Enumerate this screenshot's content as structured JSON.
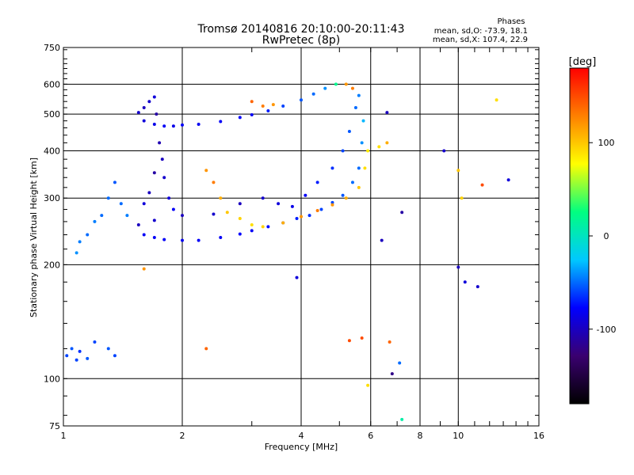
{
  "chart_data": {
    "type": "scatter",
    "title": "Tromsø 20140816 20:10:00-20:11:43",
    "subtitle": "RwPretec (8p)",
    "xlabel": "Frequency [MHz]",
    "ylabel": "Stationary phase Virtual Height [km]",
    "x_scale": "log",
    "y_scale": "log",
    "xlim": [
      1,
      16
    ],
    "ylim": [
      75,
      750
    ],
    "x_ticks": [
      1,
      2,
      4,
      6,
      8,
      10,
      16
    ],
    "y_ticks": [
      75,
      100,
      200,
      300,
      400,
      500,
      600,
      750
    ],
    "grid": true,
    "annotation": {
      "title": "Phases",
      "line1": "mean, sd,O: -73.9, 18.1",
      "line2": "mean, sd,X: 107.4, 22.9"
    },
    "colorbar": {
      "label": "[deg]",
      "range": [
        -180,
        180
      ],
      "ticks": [
        100,
        0,
        -100
      ],
      "colors": [
        "#000000",
        "#3a0070",
        "#0000ff",
        "#00c8ff",
        "#00ff80",
        "#ffff00",
        "#ff8000",
        "#ff0000"
      ]
    },
    "series": [
      {
        "points": [
          [
            1.55,
            505,
            -95
          ],
          [
            1.6,
            480,
            -90
          ],
          [
            1.7,
            470,
            -85
          ],
          [
            1.8,
            465,
            -80
          ],
          [
            1.9,
            465,
            -85
          ],
          [
            2.0,
            468,
            -80
          ],
          [
            2.2,
            470,
            -82
          ],
          [
            2.5,
            478,
            -80
          ],
          [
            2.8,
            490,
            -78
          ],
          [
            3.0,
            498,
            -80
          ],
          [
            3.3,
            510,
            -70
          ],
          [
            3.6,
            525,
            -60
          ],
          [
            4.0,
            545,
            -55
          ],
          [
            4.3,
            565,
            -50
          ],
          [
            4.6,
            585,
            -40
          ],
          [
            4.9,
            600,
            20
          ],
          [
            5.2,
            600,
            120
          ],
          [
            5.4,
            585,
            130
          ],
          [
            1.6,
            520,
            -100
          ],
          [
            1.65,
            540,
            -95
          ],
          [
            1.7,
            555,
            -90
          ],
          [
            1.72,
            500,
            -110
          ],
          [
            1.75,
            420,
            -105
          ],
          [
            1.78,
            380,
            -100
          ],
          [
            1.8,
            340,
            -95
          ],
          [
            1.85,
            300,
            -90
          ],
          [
            1.9,
            280,
            -80
          ],
          [
            1.7,
            350,
            -110
          ],
          [
            1.65,
            310,
            -100
          ],
          [
            1.6,
            290,
            -90
          ],
          [
            1.6,
            240,
            -80
          ],
          [
            1.7,
            236,
            -80
          ],
          [
            1.8,
            233,
            -80
          ],
          [
            2.0,
            232,
            -82
          ],
          [
            2.2,
            232,
            -80
          ],
          [
            2.5,
            236,
            -80
          ],
          [
            2.8,
            241,
            -78
          ],
          [
            3.0,
            246,
            -80
          ],
          [
            3.3,
            252,
            -75
          ],
          [
            3.6,
            258,
            -70
          ],
          [
            3.9,
            265,
            -70
          ],
          [
            4.2,
            270,
            -65
          ],
          [
            4.5,
            280,
            -60
          ],
          [
            4.8,
            292,
            -60
          ],
          [
            5.1,
            305,
            -55
          ],
          [
            5.4,
            330,
            -50
          ],
          [
            5.6,
            360,
            -50
          ],
          [
            5.7,
            420,
            -40
          ],
          [
            5.75,
            480,
            -30
          ],
          [
            1.55,
            255,
            -100
          ],
          [
            1.7,
            262,
            -95
          ],
          [
            2.0,
            270,
            -100
          ],
          [
            2.4,
            272,
            -95
          ],
          [
            2.8,
            290,
            -100
          ],
          [
            3.2,
            300,
            -95
          ],
          [
            3.5,
            290,
            -90
          ],
          [
            3.8,
            285,
            -85
          ],
          [
            4.1,
            305,
            -80
          ],
          [
            4.4,
            330,
            -70
          ],
          [
            4.8,
            360,
            -65
          ],
          [
            5.1,
            400,
            -60
          ],
          [
            5.3,
            450,
            -55
          ],
          [
            5.5,
            520,
            -50
          ],
          [
            5.6,
            560,
            -45
          ],
          [
            1.02,
            115,
            -60
          ],
          [
            1.05,
            120,
            -55
          ],
          [
            1.08,
            112,
            -60
          ],
          [
            1.1,
            118,
            -65
          ],
          [
            1.15,
            113,
            -55
          ],
          [
            1.2,
            125,
            -60
          ],
          [
            1.3,
            120,
            -55
          ],
          [
            1.35,
            115,
            -60
          ],
          [
            1.08,
            215,
            -40
          ],
          [
            1.1,
            230,
            -45
          ],
          [
            1.15,
            240,
            -50
          ],
          [
            1.2,
            260,
            -45
          ],
          [
            1.25,
            270,
            -50
          ],
          [
            1.3,
            300,
            -50
          ],
          [
            1.35,
            330,
            -55
          ],
          [
            1.4,
            290,
            -50
          ],
          [
            1.45,
            270,
            -45
          ],
          [
            3.9,
            185,
            -90
          ],
          [
            6.4,
            232,
            -100
          ],
          [
            7.2,
            275,
            -110
          ],
          [
            6.6,
            505,
            -100
          ],
          [
            9.2,
            400,
            -95
          ],
          [
            10.0,
            197,
            -100
          ],
          [
            10.4,
            180,
            -90
          ],
          [
            11.2,
            175,
            -95
          ],
          [
            13.4,
            335,
            -90
          ],
          [
            2.3,
            355,
            120
          ],
          [
            2.4,
            330,
            130
          ],
          [
            2.5,
            300,
            110
          ],
          [
            2.6,
            275,
            100
          ],
          [
            2.8,
            265,
            95
          ],
          [
            3.0,
            255,
            90
          ],
          [
            3.2,
            252,
            95
          ],
          [
            3.6,
            258,
            110
          ],
          [
            4.0,
            268,
            120
          ],
          [
            4.4,
            278,
            130
          ],
          [
            4.8,
            288,
            120
          ],
          [
            5.2,
            300,
            110
          ],
          [
            5.6,
            320,
            100
          ],
          [
            5.8,
            360,
            90
          ],
          [
            5.9,
            400,
            85
          ],
          [
            3.2,
            525,
            130
          ],
          [
            3.4,
            530,
            120
          ],
          [
            3.0,
            540,
            140
          ],
          [
            1.6,
            195,
            120
          ],
          [
            2.3,
            120,
            140
          ],
          [
            5.3,
            126,
            150
          ],
          [
            6.7,
            125,
            140
          ],
          [
            5.7,
            128,
            150
          ],
          [
            6.3,
            410,
            90
          ],
          [
            6.6,
            420,
            110
          ],
          [
            10.0,
            355,
            100
          ],
          [
            10.2,
            300,
            95
          ],
          [
            11.5,
            325,
            150
          ],
          [
            12.5,
            545,
            90
          ],
          [
            5.9,
            96,
            90
          ],
          [
            7.2,
            78,
            10
          ],
          [
            6.8,
            103,
            -120
          ],
          [
            7.1,
            110,
            -50
          ]
        ]
      }
    ]
  }
}
